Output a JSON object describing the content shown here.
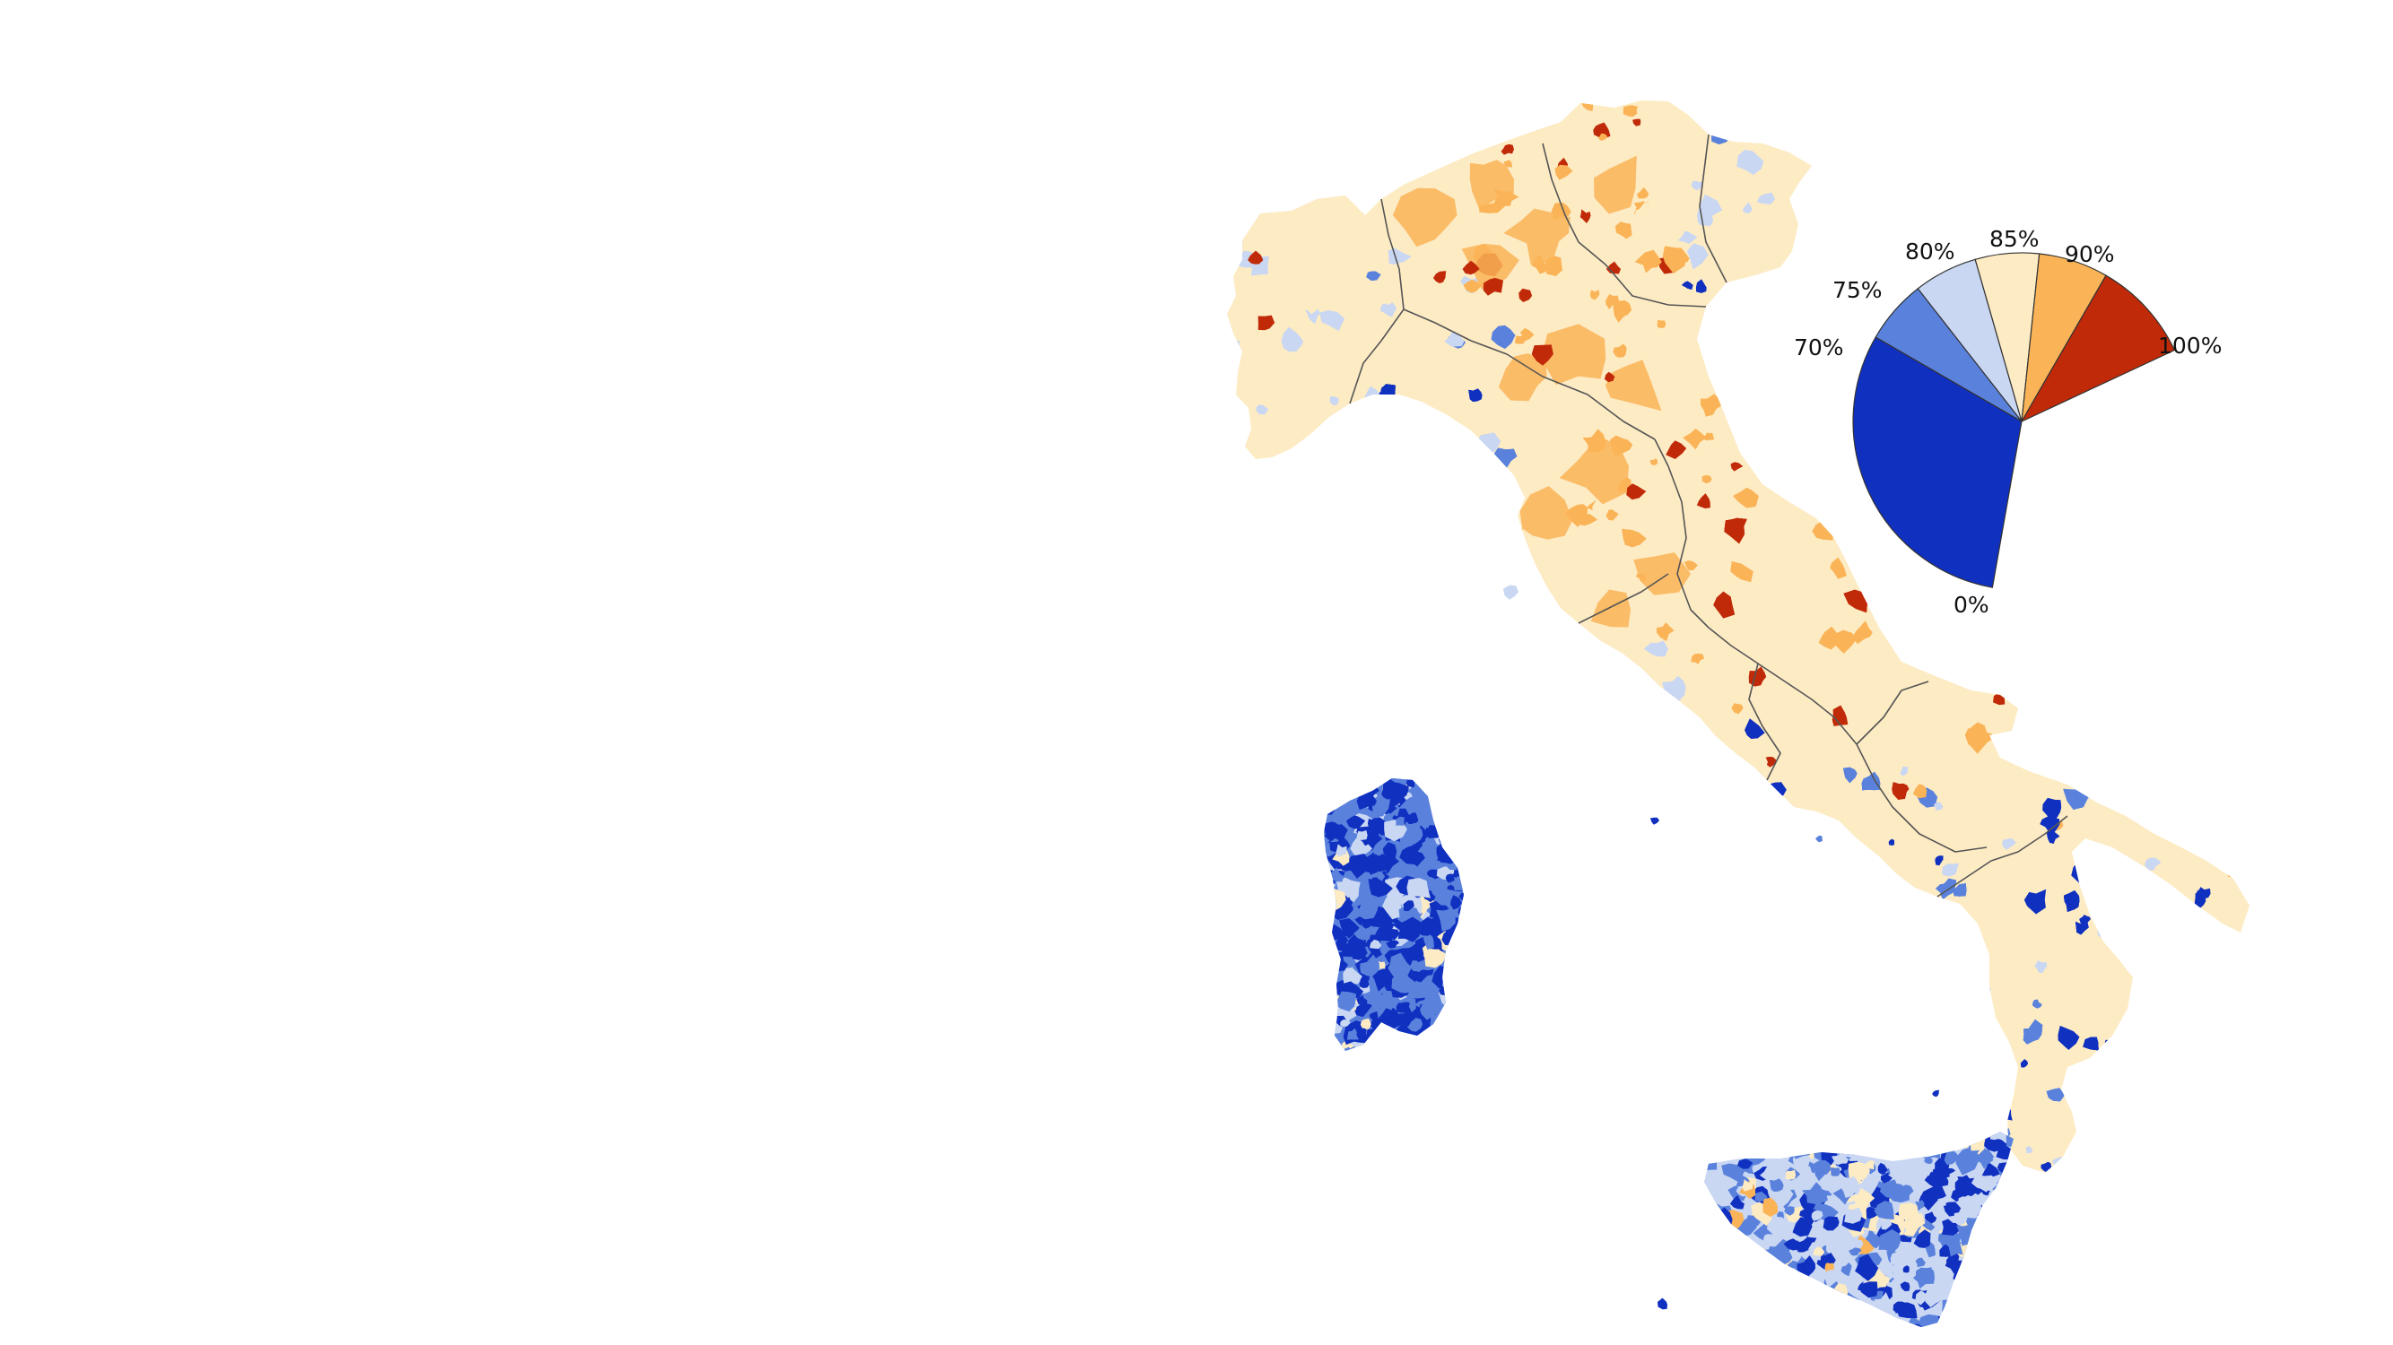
{
  "palette": {
    "band_0_70": "#1030c0",
    "band_70_75": "#5a82dc",
    "band_75_80": "#c9d7f3",
    "band_80_85": "#fdebc4",
    "band_85_90": "#fab457",
    "band_90_100": "#c02a08",
    "region_border": "#555555",
    "background": "#ffffff"
  },
  "legend": {
    "type": "pie",
    "labels": {
      "p0": "0%",
      "p70": "70%",
      "p75": "75%",
      "p80": "80%",
      "p85": "85%",
      "p90": "90%",
      "p100": "100%"
    },
    "wedges": [
      {
        "from": 0,
        "to": 70,
        "color_key": "band_0_70"
      },
      {
        "from": 70,
        "to": 75,
        "color_key": "band_70_75"
      },
      {
        "from": 75,
        "to": 80,
        "color_key": "band_75_80"
      },
      {
        "from": 80,
        "to": 85,
        "color_key": "band_80_85"
      },
      {
        "from": 85,
        "to": 90,
        "color_key": "band_85_90"
      },
      {
        "from": 90,
        "to": 100,
        "color_key": "band_90_100"
      }
    ]
  },
  "map": {
    "subject": "Italy municipalities choropleth",
    "regions": [
      "north",
      "centre",
      "south",
      "sicily",
      "sardinia"
    ],
    "dominant_band": {
      "north": "band_85_90",
      "centre": "band_80_85",
      "south": "band_0_70",
      "sicily": "band_70_75",
      "sardinia": "band_0_70"
    }
  }
}
